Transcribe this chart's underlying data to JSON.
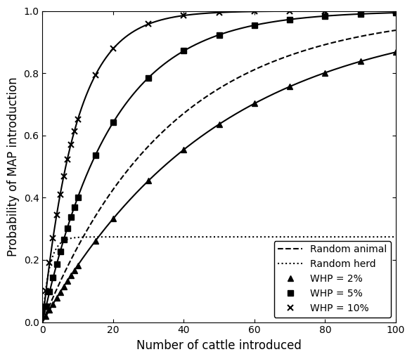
{
  "xlabel": "Number of cattle introduced",
  "ylabel": "Probability of MAP introduction",
  "xlim": [
    0,
    100
  ],
  "ylim": [
    0,
    1.0
  ],
  "xticks": [
    0,
    20,
    40,
    60,
    80,
    100
  ],
  "yticks": [
    0.0,
    0.2,
    0.4,
    0.6,
    0.8,
    1.0
  ],
  "legend_labels": [
    "Random animal",
    "Random herd",
    "WHP = 2%",
    "WHP = 5%",
    "WHP = 10%"
  ],
  "whp_2": 0.02,
  "whp_5": 0.05,
  "whp_10": 0.1,
  "herd_prev": 0.274,
  "random_animal_prev": 0.02,
  "random_herd_within": 0.1,
  "line_color": "#000000",
  "figsize": [
    5.96,
    5.21
  ],
  "dpi": 100,
  "marker_positions": [
    1,
    2,
    3,
    4,
    5,
    6,
    7,
    8,
    9,
    10,
    15,
    20,
    30,
    40,
    50,
    60,
    70,
    80,
    90,
    100
  ]
}
